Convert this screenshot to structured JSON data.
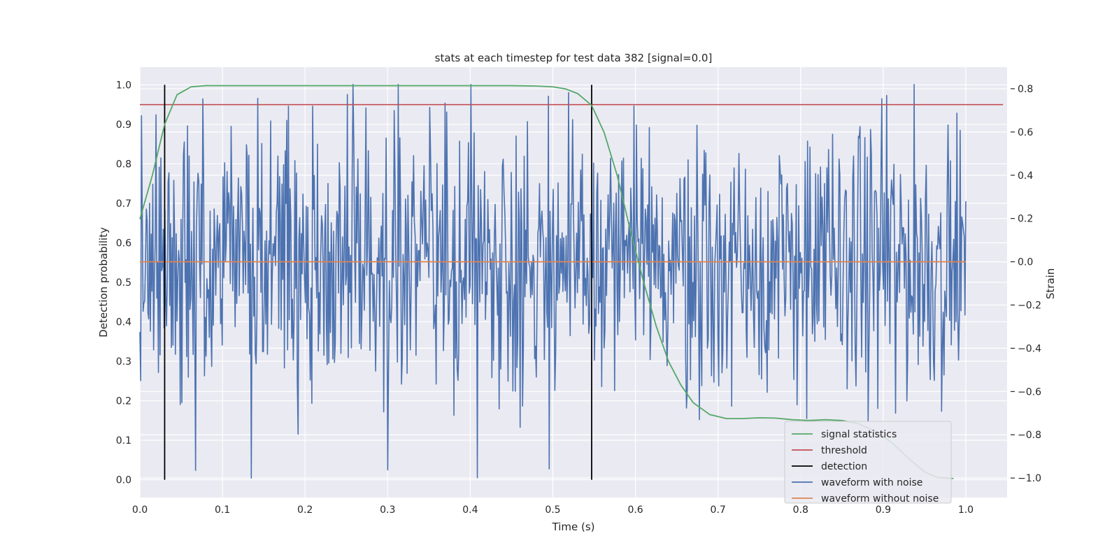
{
  "chart_data": {
    "type": "line",
    "title": "stats at each timestep for test data 382 [signal=0.0]",
    "xlabel": "Time (s)",
    "ylabel_left": "Detection probability",
    "ylabel_right": "Strain",
    "xlim": [
      0.0,
      1.05
    ],
    "ylim_left": [
      -0.045,
      1.045
    ],
    "ylim_right": [
      -1.09,
      0.9
    ],
    "x_ticks": [
      "0.0",
      "0.1",
      "0.2",
      "0.3",
      "0.4",
      "0.5",
      "0.6",
      "0.7",
      "0.8",
      "0.9",
      "1.0"
    ],
    "y_left_ticks": [
      "0.0",
      "0.1",
      "0.2",
      "0.3",
      "0.4",
      "0.5",
      "0.6",
      "0.7",
      "0.8",
      "0.9",
      "1.0"
    ],
    "y_right_ticks": [
      "−1.0",
      "−0.8",
      "−0.6",
      "−0.4",
      "−0.2",
      "0.0",
      "0.2",
      "0.4",
      "0.6",
      "0.8"
    ],
    "grid": true,
    "legend_position": "lower-right",
    "series": [
      {
        "name": "signal statistics",
        "axis": "left",
        "color": "#55a868",
        "x": [
          0.0,
          0.015,
          0.03,
          0.045,
          0.062,
          0.08,
          0.1,
          0.2,
          0.3,
          0.4,
          0.45,
          0.48,
          0.5,
          0.515,
          0.53,
          0.547,
          0.562,
          0.578,
          0.594,
          0.61,
          0.625,
          0.64,
          0.655,
          0.67,
          0.69,
          0.71,
          0.73,
          0.75,
          0.77,
          0.79,
          0.81,
          0.83,
          0.85,
          0.87,
          0.89,
          0.91,
          0.93,
          0.95,
          0.965,
          0.985
        ],
        "y": [
          0.66,
          0.77,
          0.9,
          0.975,
          0.995,
          0.998,
          0.998,
          0.998,
          0.998,
          0.998,
          0.998,
          0.997,
          0.995,
          0.99,
          0.978,
          0.948,
          0.88,
          0.77,
          0.63,
          0.5,
          0.39,
          0.3,
          0.24,
          0.195,
          0.165,
          0.155,
          0.155,
          0.157,
          0.156,
          0.152,
          0.15,
          0.152,
          0.15,
          0.142,
          0.123,
          0.095,
          0.055,
          0.02,
          0.006,
          0.003
        ]
      },
      {
        "name": "threshold",
        "axis": "left",
        "color": "#c44e52",
        "x": [
          0.0,
          1.045
        ],
        "y": [
          0.95,
          0.95
        ]
      },
      {
        "name": "detection",
        "axis": "left",
        "color": "#000000",
        "segments": [
          {
            "x": 0.03,
            "y": [
              0.0,
              1.0
            ]
          },
          {
            "x": 0.547,
            "y": [
              0.0,
              1.0
            ]
          }
        ]
      },
      {
        "name": "waveform with noise",
        "axis": "right",
        "color": "#4c72b0",
        "x_range": [
          0.0,
          1.0
        ],
        "points": 1024,
        "y_range": [
          -1.0,
          0.82
        ],
        "note": "dense noisy strain trace oscillating roughly between -0.55 and 0.55, with extreme peaks near 0.40 (0.82) and 0.135 (-1.0)"
      },
      {
        "name": "waveform without noise",
        "axis": "right",
        "color": "#dd8452",
        "x": [
          0.0,
          1.0
        ],
        "y": [
          0.0,
          0.0
        ]
      }
    ]
  }
}
